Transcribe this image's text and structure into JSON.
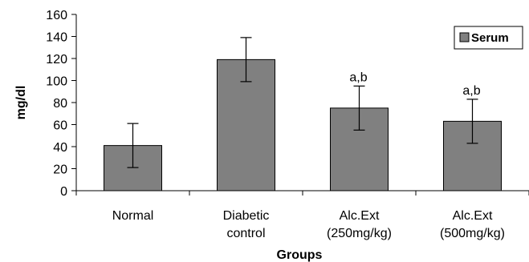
{
  "chart_data": {
    "type": "bar",
    "categories": [
      [
        "Normal"
      ],
      [
        "Diabetic",
        "control"
      ],
      [
        "Alc.Ext",
        "(250mg/kg)"
      ],
      [
        "Alc.Ext",
        "(500mg/kg)"
      ]
    ],
    "series": [
      {
        "name": "Serum",
        "values": [
          41,
          119,
          75,
          63
        ],
        "errors": [
          20,
          20,
          20,
          20
        ],
        "color": "#808080"
      }
    ],
    "annotations": [
      "",
      "",
      "a,b",
      "a,b"
    ],
    "xlabel": "Groups",
    "ylabel": "mg/dl",
    "ylim": [
      0,
      160
    ],
    "yticks": [
      0,
      20,
      40,
      60,
      80,
      100,
      120,
      140,
      160
    ],
    "grid": false,
    "legend_position": "top-right"
  }
}
